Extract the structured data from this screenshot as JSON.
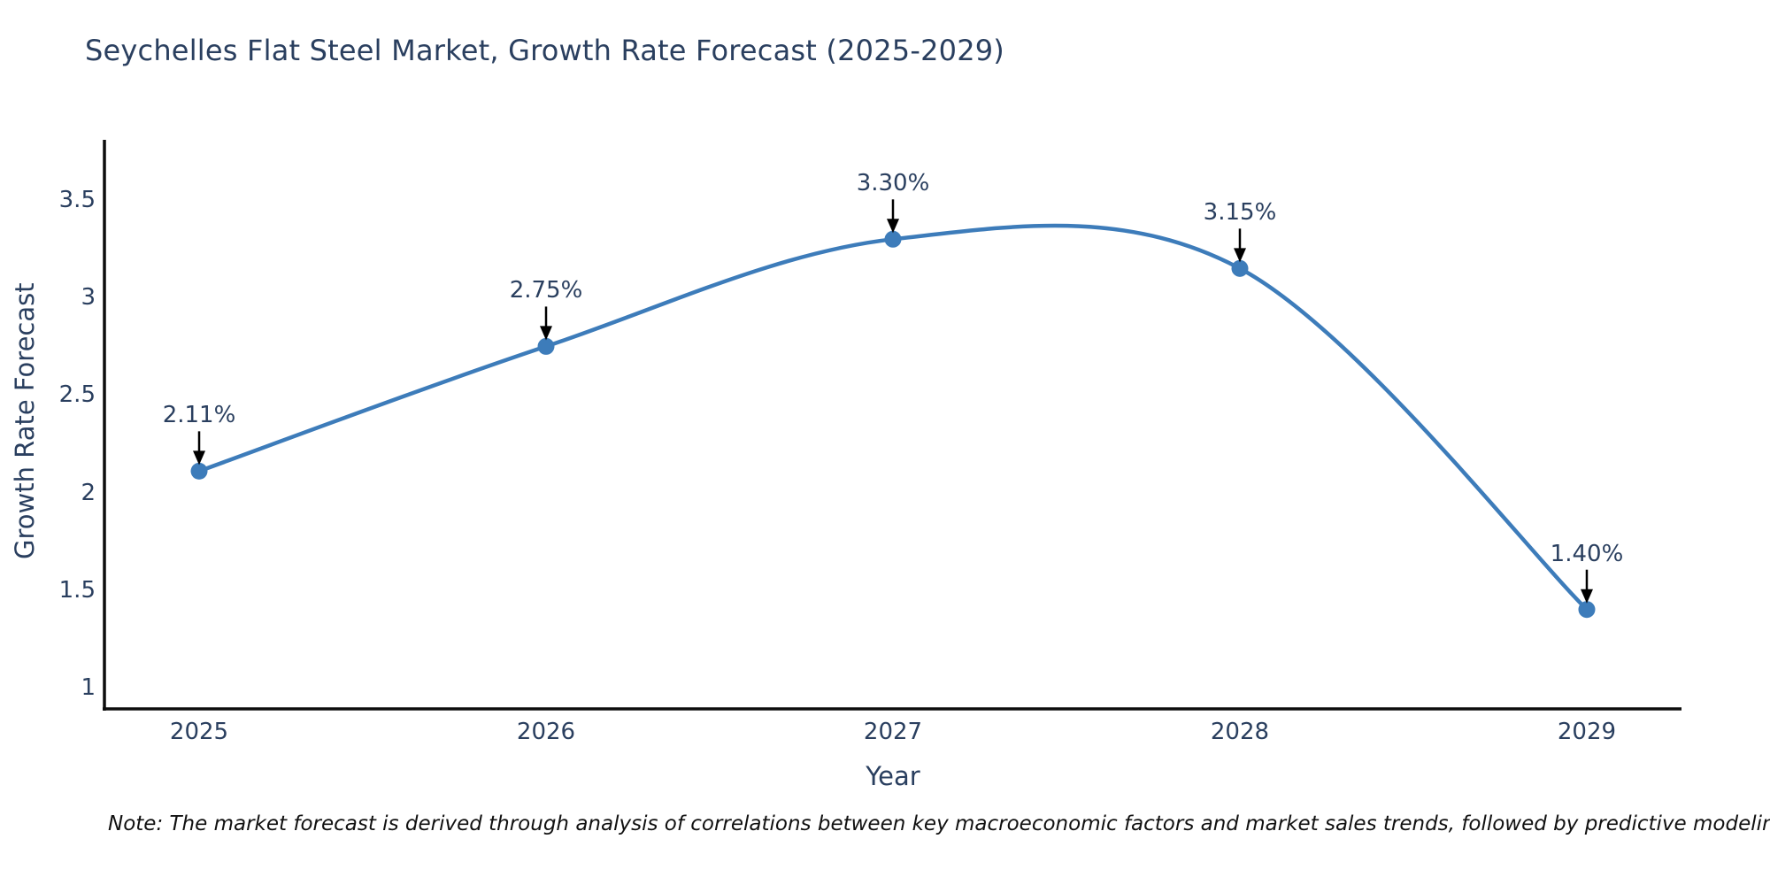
{
  "title": "Seychelles Flat Steel Market, Growth Rate Forecast (2025-2029)",
  "note": "Note: The market forecast is derived through analysis of correlations between key macroeconomic factors and market sales trends, followed by predictive modeling to project future sales",
  "chart_data": {
    "type": "line",
    "line_shape": "spline",
    "title": "Seychelles Flat Steel Market, Growth Rate Forecast (2025-2029)",
    "xlabel": "Year",
    "ylabel": "Growth Rate Forecast",
    "x": [
      2025,
      2026,
      2027,
      2028,
      2029
    ],
    "values": [
      2.11,
      2.75,
      3.3,
      3.15,
      1.4
    ],
    "point_labels": [
      "2.11%",
      "2.75%",
      "3.30%",
      "3.15%",
      "1.40%"
    ],
    "xticks": [
      "2025",
      "2026",
      "2027",
      "2028",
      "2029"
    ],
    "xtick_values": [
      2025,
      2026,
      2027,
      2028,
      2029
    ],
    "yticks": [
      "1",
      "1.5",
      "2",
      "2.5",
      "3",
      "3.5"
    ],
    "ytick_values": [
      1,
      1.5,
      2,
      2.5,
      3,
      3.5
    ],
    "xlim": [
      2024.727,
      2029.273
    ],
    "ylim": [
      0.89,
      3.81
    ],
    "grid": false,
    "legend": false,
    "annotation_arrows": true,
    "colors": {
      "line": "#3d7cba",
      "marker": "#3d7cba",
      "axis": "#0d0d0d",
      "text": "#2a3f5f",
      "arrow": "#000000",
      "background": "#ffffff"
    }
  }
}
